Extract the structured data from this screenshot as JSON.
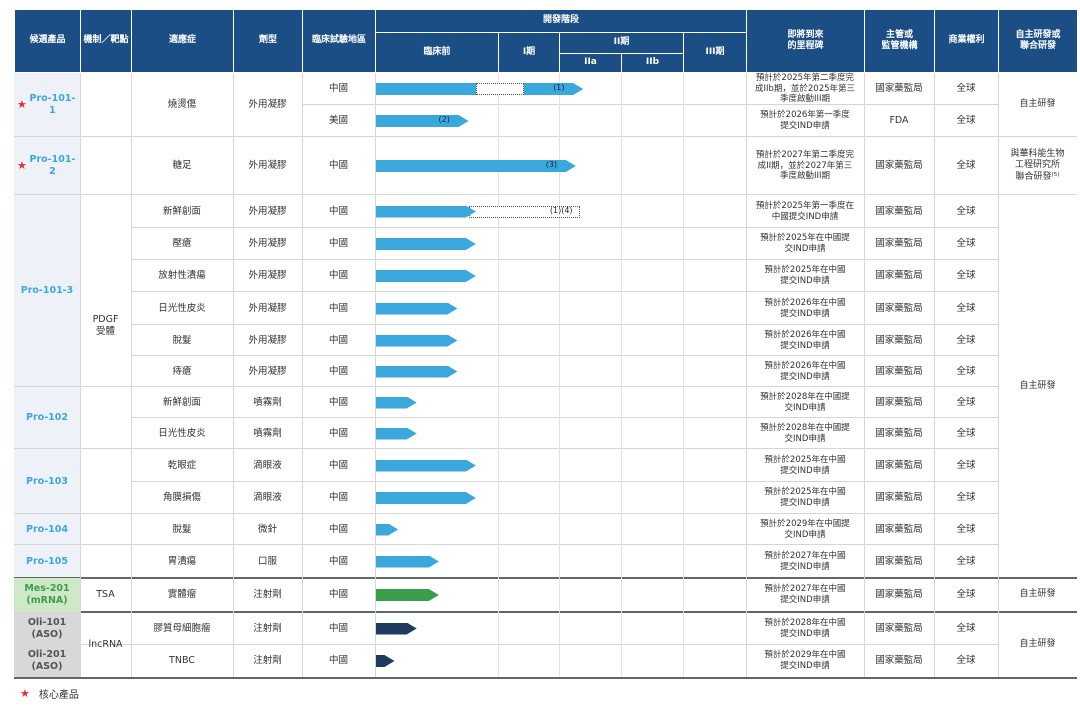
{
  "header": {
    "product": "候選產品",
    "mechanism": "機制／靶點",
    "indication": "適應症",
    "formulation": "劑型",
    "trial_region": "臨床試驗地區",
    "dev_stage": "開發階段",
    "preclinical": "臨床前",
    "phase1": "I期",
    "phase2": "II期",
    "phase2a": "IIa",
    "phase2b": "IIb",
    "phase3": "III期",
    "milestone": "即將到來\n的里程碑",
    "regulator": "主管或\n監管機構",
    "rights": "商業權利",
    "partner": "自主研發或\n聯合研發"
  },
  "products": [
    {
      "name": "Pro-101-1",
      "core": true
    },
    {
      "name": "Pro-101-2",
      "core": true
    },
    {
      "name": "Pro-101-3",
      "core": false
    },
    {
      "name": "Pro-102",
      "core": false
    },
    {
      "name": "Pro-103",
      "core": false
    },
    {
      "name": "Pro-104",
      "core": false
    },
    {
      "name": "Pro-105",
      "core": false
    },
    {
      "name": "Mes-201\n(mRNA)",
      "core": false
    },
    {
      "name": "Oli-101\n(ASO)",
      "core": false
    },
    {
      "name": "Oli-201\n(ASO)",
      "core": false
    }
  ],
  "mechanisms": [
    "PDGF\n受體",
    "TSA",
    "lncRNA"
  ],
  "rows": [
    {
      "indication": "燒燙傷",
      "form": "外用凝膠",
      "region": "中國",
      "progress": 0.56,
      "dashed": [
        0.27,
        0.4
      ],
      "note": "(1)",
      "milestone": "預計於2025年第二季度完\n成IIb期，並於2025年第三\n季度啟動III期",
      "regulator": "國家藥監局",
      "rights": "全球"
    },
    {
      "indication": "",
      "form": "",
      "region": "美國",
      "progress": 0.25,
      "note": "(2)",
      "milestone": "預計於2026年第一季度\n提交IND申請",
      "regulator": "FDA",
      "rights": "全球"
    },
    {
      "indication": "糖足",
      "form": "外用凝膠",
      "region": "中國",
      "progress": 0.54,
      "note": "(3)",
      "milestone": "預計於2027年第二季度完\n成II期，並於2027年第三\n季度啟動III期",
      "regulator": "國家藥監局",
      "rights": "全球"
    },
    {
      "indication": "新鮮創面",
      "form": "外用凝膠",
      "region": "中國",
      "progress": 0.27,
      "dashed": [
        0.25,
        0.55
      ],
      "note": "(1)(4)",
      "milestone": "預計於2025年第一季度在\n中國提交IND申請",
      "regulator": "國家藥監局",
      "rights": "全球"
    },
    {
      "indication": "壓瘡",
      "form": "外用凝膠",
      "region": "中國",
      "progress": 0.27,
      "milestone": "預計於2025年在中國提\n交IND申請",
      "regulator": "國家藥監局",
      "rights": "全球"
    },
    {
      "indication": "放射性潰瘍",
      "form": "外用凝膠",
      "region": "中國",
      "progress": 0.27,
      "milestone": "預計於2025年在中國\n提交IND申請",
      "regulator": "國家藥監局",
      "rights": "全球"
    },
    {
      "indication": "日光性皮炎",
      "form": "外用凝膠",
      "region": "中國",
      "progress": 0.22,
      "milestone": "預計於2026年在中國\n提交IND申請",
      "regulator": "國家藥監局",
      "rights": "全球"
    },
    {
      "indication": "脫髮",
      "form": "外用凝膠",
      "region": "中國",
      "progress": 0.22,
      "milestone": "預計於2026年在中國\n提交IND申請",
      "regulator": "國家藥監局",
      "rights": "全球"
    },
    {
      "indication": "痔瘡",
      "form": "外用凝膠",
      "region": "中國",
      "progress": 0.22,
      "milestone": "預計於2026年在中國\n提交IND申請",
      "regulator": "國家藥監局",
      "rights": "全球"
    },
    {
      "indication": "新鮮創面",
      "form": "噴霧劑",
      "region": "中國",
      "progress": 0.11,
      "milestone": "預計於2028年在中國提\n交IND申請",
      "regulator": "國家藥監局",
      "rights": "全球"
    },
    {
      "indication": "日光性皮炎",
      "form": "噴霧劑",
      "region": "中國",
      "progress": 0.11,
      "milestone": "預計於2028年在中國提\n交IND申請",
      "regulator": "國家藥監局",
      "rights": "全球"
    },
    {
      "indication": "乾眼症",
      "form": "滴眼液",
      "region": "中國",
      "progress": 0.27,
      "milestone": "預計於2025年在中國\n提交IND申請",
      "regulator": "國家藥監局",
      "rights": "全球"
    },
    {
      "indication": "角膜損傷",
      "form": "滴眼液",
      "region": "中國",
      "progress": 0.27,
      "milestone": "預計於2025年在中國\n提交IND申請",
      "regulator": "國家藥監局",
      "rights": "全球"
    },
    {
      "indication": "脫髮",
      "form": "微針",
      "region": "中國",
      "progress": 0.06,
      "milestone": "預計於2029年在中國提\n交IND申請",
      "regulator": "國家藥監局",
      "rights": "全球"
    },
    {
      "indication": "胃潰瘍",
      "form": "口服",
      "region": "中國",
      "progress": 0.17,
      "milestone": "預計於2027年在中國\n提交IND申請",
      "regulator": "國家藥監局",
      "rights": "全球"
    },
    {
      "indication": "實體瘤",
      "form": "注射劑",
      "region": "中國",
      "progress": 0.17,
      "milestone": "預計於2027年在中國\n提交IND申請",
      "regulator": "國家藥監局",
      "rights": "全球"
    },
    {
      "indication": "膠質母細胞瘤",
      "form": "注射劑",
      "region": "中國",
      "progress": 0.11,
      "milestone": "預計於2028年在中國\n提交IND申請",
      "regulator": "國家藥監局",
      "rights": "全球"
    },
    {
      "indication": "TNBC",
      "form": "注射劑",
      "region": "中國",
      "progress": 0.05,
      "milestone": "預計於2029年在中國\n提交IND申請",
      "regulator": "國家藥監局",
      "rights": "全球"
    }
  ],
  "partners": [
    "自主研發",
    "與華科能生物\n工程研究所\n聯合研發⁽⁵⁾",
    "自主研發",
    "自主研發",
    "自主研發"
  ],
  "legend": {
    "label": "核心產品"
  },
  "colors": {
    "header": "#1c4e86",
    "bar_blue": "#3aa8dd",
    "bar_green": "#3a9f4a",
    "bar_navy": "#1e3a5f",
    "core_star": "#e53030"
  }
}
